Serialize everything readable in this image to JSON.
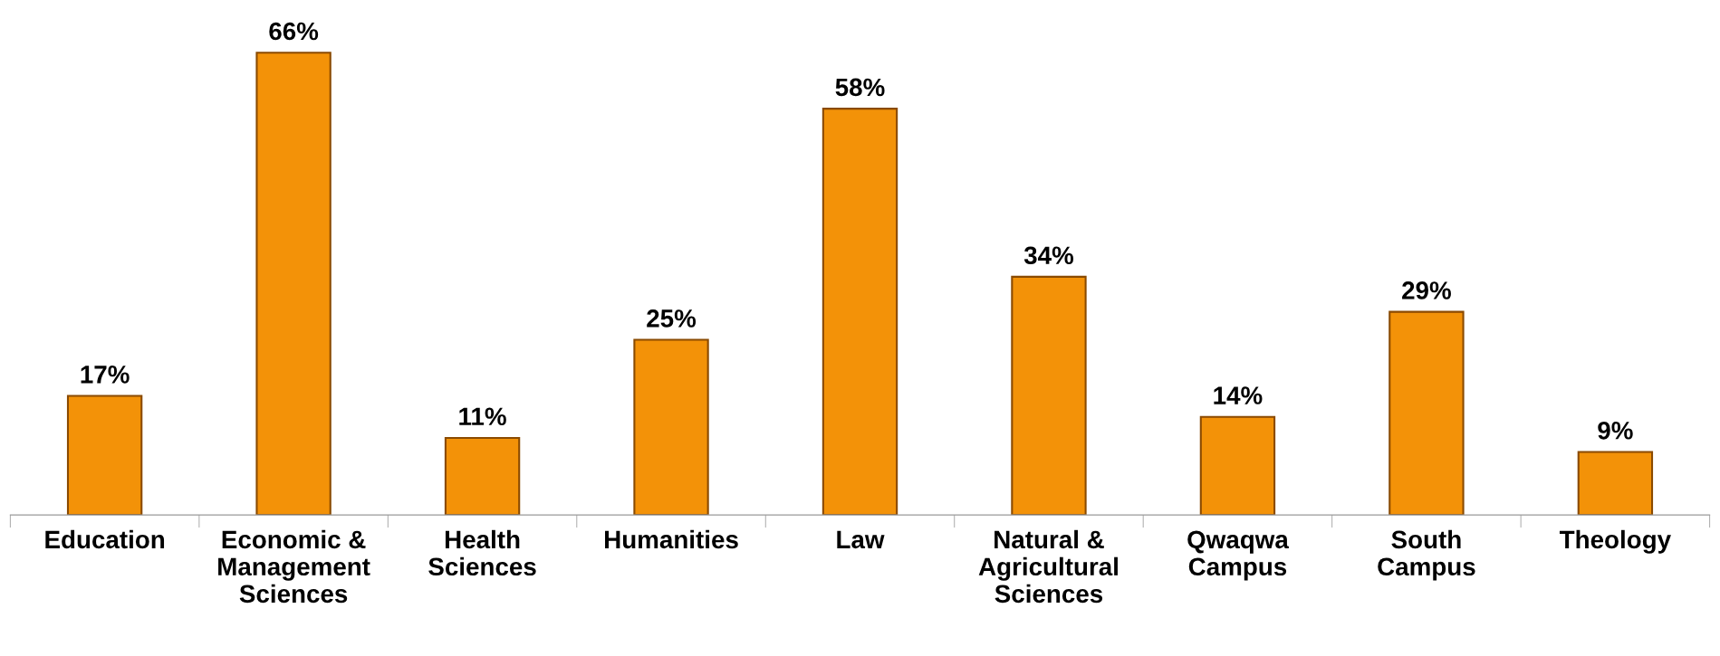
{
  "chart_data": {
    "type": "bar",
    "categories": [
      "Education",
      "Economic &\nManagement\nSciences",
      "Health\nSciences",
      "Humanities",
      "Law",
      "Natural &\nAgricultural\nSciences",
      "Qwaqwa\nCampus",
      "South\nCampus",
      "Theology"
    ],
    "values": [
      17,
      66,
      11,
      25,
      58,
      34,
      14,
      29,
      9
    ],
    "value_labels": [
      "17%",
      "66%",
      "11%",
      "25%",
      "58%",
      "34%",
      "14%",
      "29%",
      "9%"
    ],
    "color": "#f39208",
    "grid": false,
    "legend": false
  }
}
